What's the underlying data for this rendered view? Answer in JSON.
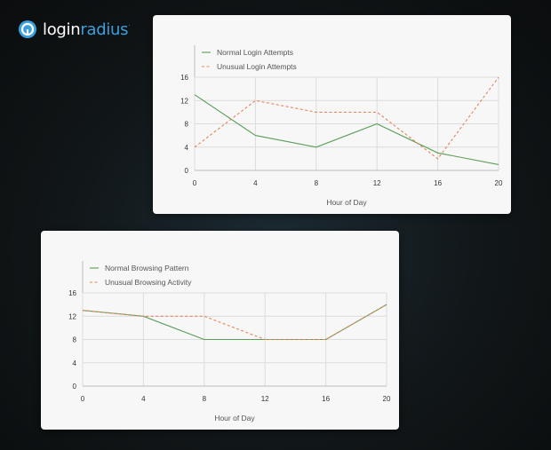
{
  "brand": {
    "name_prefix": "login",
    "name_suffix": "radius",
    "trademark": ".",
    "accent_color": "#3aa0de"
  },
  "chart_data": [
    {
      "type": "line",
      "xlabel": "Hour of Day",
      "ylabel": "",
      "x": [
        0,
        4,
        8,
        12,
        16,
        20
      ],
      "xlim": [
        0,
        20
      ],
      "ylim": [
        0,
        16
      ],
      "xticks": [
        "0",
        "4",
        "8",
        "12",
        "16",
        "20"
      ],
      "yticks": [
        "0",
        "4",
        "8",
        "12",
        "16"
      ],
      "grid": true,
      "legend_position": "top-left",
      "series": [
        {
          "name": "Normal Login Attempts",
          "values": [
            13,
            6,
            4,
            8,
            3,
            1
          ],
          "color": "#5a9e5a",
          "style": "solid"
        },
        {
          "name": "Unusual Login Attempts",
          "values": [
            4,
            12,
            10,
            10,
            2,
            16
          ],
          "color": "#e8835a",
          "style": "dashed"
        }
      ]
    },
    {
      "type": "line",
      "xlabel": "Hour of Day",
      "ylabel": "",
      "x": [
        0,
        4,
        8,
        12,
        16,
        20
      ],
      "xlim": [
        0,
        20
      ],
      "ylim": [
        0,
        16
      ],
      "xticks": [
        "0",
        "4",
        "8",
        "12",
        "16",
        "20"
      ],
      "yticks": [
        "0",
        "4",
        "8",
        "12",
        "16"
      ],
      "grid": true,
      "legend_position": "top-left",
      "series": [
        {
          "name": "Normal Browsing Pattern",
          "values": [
            13,
            12,
            8,
            8,
            8,
            14
          ],
          "color": "#5a9e5a",
          "style": "solid"
        },
        {
          "name": "Unusual Browsing Activity",
          "values": [
            13,
            12,
            12,
            8,
            8,
            14
          ],
          "color": "#e8835a",
          "style": "dashed"
        }
      ]
    }
  ]
}
